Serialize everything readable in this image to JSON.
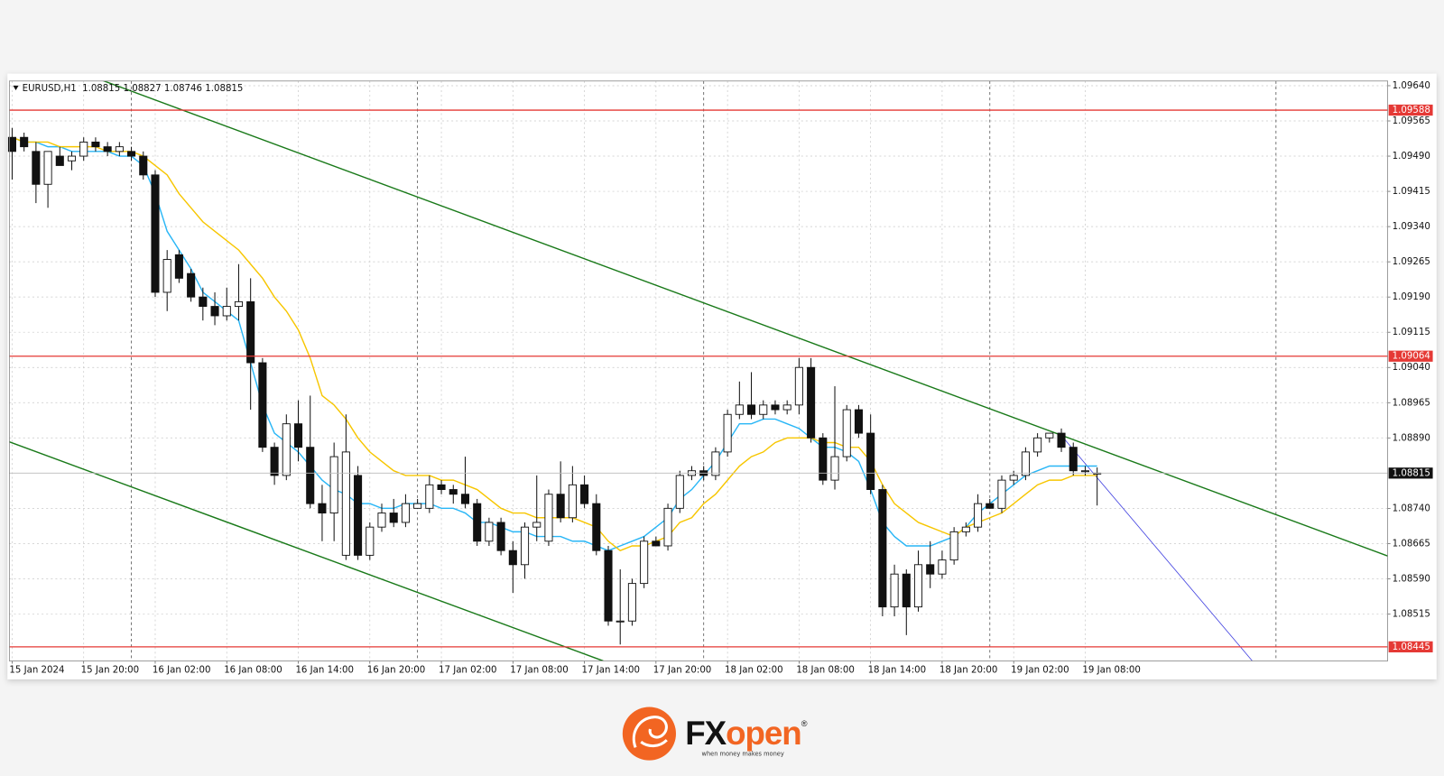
{
  "chart_data": {
    "type": "candlestick",
    "symbol": "EURUSD,H1",
    "categories": [
      "15 Jan 2024",
      null,
      null,
      null,
      null,
      null,
      "15 Jan 20:00",
      null,
      null,
      null,
      null,
      null,
      "16 Jan 02:00",
      null,
      null,
      null,
      null,
      null,
      "16 Jan 08:00",
      null,
      null,
      null,
      null,
      null,
      "16 Jan 14:00",
      null,
      null,
      null,
      null,
      null,
      "16 Jan 20:00",
      null,
      null,
      null,
      null,
      null,
      "17 Jan 02:00",
      null,
      null,
      null,
      null,
      null,
      "17 Jan 08:00",
      null,
      null,
      null,
      null,
      null,
      "17 Jan 14:00",
      null,
      null,
      null,
      null,
      null,
      "17 Jan 20:00",
      null,
      null,
      null,
      null,
      null,
      "18 Jan 02:00",
      null,
      null,
      null,
      null,
      null,
      "18 Jan 08:00",
      null,
      null,
      null,
      null,
      null,
      "18 Jan 14:00",
      null,
      null,
      null,
      null,
      null,
      "18 Jan 20:00",
      null,
      null,
      null,
      null,
      null,
      "19 Jan 02:00",
      null,
      null,
      null,
      null,
      null,
      "19 Jan 08:00",
      null
    ],
    "open": [
      1.0953,
      1.0953,
      1.095,
      1.0943,
      1.0949,
      1.0948,
      1.0949,
      1.0952,
      1.0951,
      1.095,
      1.095,
      1.0949,
      1.0945,
      1.092,
      1.0928,
      1.0924,
      1.0919,
      1.0917,
      1.0915,
      1.0917,
      1.0918,
      1.0905,
      1.0887,
      1.0881,
      1.0892,
      1.0887,
      1.0875,
      1.0873,
      1.0864,
      1.0881,
      1.0864,
      1.087,
      1.0873,
      1.0871,
      1.0874,
      1.0874,
      1.0879,
      1.0878,
      1.0877,
      1.0875,
      1.0867,
      1.0871,
      1.0865,
      1.0862,
      1.087,
      1.0867,
      1.0877,
      1.0872,
      1.0879,
      1.0875,
      1.0865,
      1.085,
      1.085,
      1.0858,
      1.0867,
      1.0866,
      1.0874,
      1.0881,
      1.0882,
      1.0881,
      1.0886,
      1.0894,
      1.0896,
      1.0894,
      1.0896,
      1.0895,
      1.0896,
      1.0904,
      1.0889,
      1.088,
      1.0885,
      1.0895,
      1.089,
      1.0878,
      1.0853,
      1.086,
      1.0853,
      1.0862,
      1.086,
      1.0863,
      1.0869,
      1.087,
      1.0875,
      1.0874,
      1.088,
      1.0881,
      1.0886,
      1.0889,
      1.089,
      1.0887,
      1.0882,
      1.08815
    ],
    "high": [
      1.0955,
      1.0954,
      1.0952,
      1.095,
      1.0951,
      1.095,
      1.0953,
      1.0953,
      1.0952,
      1.0952,
      1.0951,
      1.095,
      1.0946,
      1.0929,
      1.0929,
      1.0925,
      1.0921,
      1.092,
      1.0921,
      1.0926,
      1.0923,
      1.0906,
      1.0888,
      1.0894,
      1.0897,
      1.0898,
      1.0879,
      1.0888,
      1.0894,
      1.0883,
      1.0871,
      1.0875,
      1.0876,
      1.0877,
      1.0876,
      1.0881,
      1.088,
      1.0879,
      1.0885,
      1.0876,
      1.0872,
      1.0872,
      1.0867,
      1.0871,
      1.0881,
      1.0878,
      1.0884,
      1.0883,
      1.0881,
      1.0877,
      1.0866,
      1.0861,
      1.0859,
      1.0868,
      1.0868,
      1.0875,
      1.0882,
      1.0883,
      1.0883,
      1.0887,
      1.0895,
      1.0901,
      1.0903,
      1.0897,
      1.0897,
      1.0897,
      1.0906,
      1.0906,
      1.089,
      1.09,
      1.0896,
      1.0896,
      1.0894,
      1.0879,
      1.0862,
      1.0861,
      1.0865,
      1.0867,
      1.0865,
      1.087,
      1.0871,
      1.0877,
      1.0876,
      1.0881,
      1.0882,
      1.0887,
      1.089,
      1.089,
      1.0891,
      1.0888,
      1.0883,
      1.08827
    ],
    "low": [
      1.0944,
      1.095,
      1.0939,
      1.0938,
      1.0947,
      1.0946,
      1.0948,
      1.095,
      1.0949,
      1.0949,
      1.0948,
      1.0944,
      1.0919,
      1.0916,
      1.0922,
      1.0918,
      1.0914,
      1.0913,
      1.0914,
      1.0914,
      1.0895,
      1.0886,
      1.0879,
      1.088,
      1.0884,
      1.0874,
      1.0867,
      1.0867,
      1.0863,
      1.0863,
      1.0863,
      1.0869,
      1.087,
      1.087,
      1.0874,
      1.0873,
      1.0877,
      1.0875,
      1.0874,
      1.0866,
      1.0866,
      1.0864,
      1.0856,
      1.0859,
      1.0867,
      1.0866,
      1.0871,
      1.0871,
      1.0874,
      1.0864,
      1.0849,
      1.0845,
      1.0849,
      1.0857,
      1.0866,
      1.0865,
      1.0873,
      1.088,
      1.088,
      1.088,
      1.0885,
      1.0893,
      1.0893,
      1.0893,
      1.0894,
      1.0894,
      1.0894,
      1.0888,
      1.0879,
      1.0878,
      1.0884,
      1.0889,
      1.0877,
      1.0851,
      1.0851,
      1.0847,
      1.0852,
      1.0857,
      1.0859,
      1.0862,
      1.0868,
      1.0869,
      1.0874,
      1.0873,
      1.0879,
      1.088,
      1.0885,
      1.0888,
      1.0886,
      1.0881,
      1.0881,
      1.08746
    ],
    "close": [
      1.095,
      1.0951,
      1.0943,
      1.095,
      1.0947,
      1.0949,
      1.0952,
      1.0951,
      1.095,
      1.0951,
      1.0949,
      1.0945,
      1.092,
      1.0927,
      1.0923,
      1.0919,
      1.0917,
      1.0915,
      1.0917,
      1.0918,
      1.0905,
      1.0887,
      1.0881,
      1.0892,
      1.0887,
      1.0875,
      1.0873,
      1.0885,
      1.0886,
      1.0864,
      1.087,
      1.0873,
      1.0871,
      1.0875,
      1.0875,
      1.0879,
      1.0878,
      1.0877,
      1.0875,
      1.0867,
      1.0871,
      1.0865,
      1.0862,
      1.087,
      1.0871,
      1.0877,
      1.0872,
      1.0879,
      1.0875,
      1.0865,
      1.085,
      1.085,
      1.0858,
      1.0867,
      1.0866,
      1.0874,
      1.0881,
      1.0882,
      1.0881,
      1.0886,
      1.0894,
      1.0896,
      1.0894,
      1.0896,
      1.0895,
      1.0896,
      1.0904,
      1.0889,
      1.088,
      1.0885,
      1.0895,
      1.089,
      1.0878,
      1.0853,
      1.086,
      1.0853,
      1.0862,
      1.086,
      1.0863,
      1.0869,
      1.087,
      1.0875,
      1.0874,
      1.088,
      1.0881,
      1.0886,
      1.0889,
      1.089,
      1.0887,
      1.0882,
      1.0882,
      1.08815
    ],
    "lines": [
      {
        "color": "#29b6f6",
        "values": [
          1.0953,
          1.0952,
          1.0952,
          1.0951,
          1.0951,
          1.095,
          1.095,
          1.095,
          1.095,
          1.0949,
          1.0949,
          1.0947,
          1.0941,
          1.0933,
          1.0929,
          1.0925,
          1.092,
          1.0918,
          1.0916,
          1.0914,
          1.0905,
          1.0896,
          1.089,
          1.0888,
          1.0886,
          1.0883,
          1.088,
          1.0878,
          1.0877,
          1.0875,
          1.0875,
          1.0874,
          1.0874,
          1.0875,
          1.0875,
          1.0875,
          1.0874,
          1.0874,
          1.0873,
          1.0871,
          1.0871,
          1.087,
          1.0869,
          1.0869,
          1.0868,
          1.0868,
          1.0868,
          1.0867,
          1.0867,
          1.0866,
          1.0865,
          1.0866,
          1.0867,
          1.0868,
          1.087,
          1.0872,
          1.0876,
          1.0878,
          1.0881,
          1.0884,
          1.0888,
          1.0892,
          1.0892,
          1.0893,
          1.0893,
          1.0892,
          1.0891,
          1.0889,
          1.0887,
          1.0887,
          1.0886,
          1.0884,
          1.0878,
          1.0871,
          1.0868,
          1.0866,
          1.0866,
          1.0866,
          1.0867,
          1.0868,
          1.087,
          1.0873,
          1.0875,
          1.0877,
          1.0879,
          1.0881,
          1.0882,
          1.0883,
          1.0883,
          1.0883,
          1.0883,
          1.0883
        ]
      },
      {
        "color": "#f7c600",
        "values": [
          1.0953,
          1.0952,
          1.0952,
          1.0952,
          1.0951,
          1.0951,
          1.0951,
          1.0951,
          1.095,
          1.095,
          1.095,
          1.0949,
          1.0947,
          1.0945,
          1.0941,
          1.0938,
          1.0935,
          1.0933,
          1.0931,
          1.0929,
          1.0926,
          1.0923,
          1.0919,
          1.0916,
          1.0912,
          1.0906,
          1.0898,
          1.0896,
          1.0893,
          1.0889,
          1.0886,
          1.0884,
          1.0882,
          1.0881,
          1.0881,
          1.0881,
          1.088,
          1.088,
          1.0879,
          1.0878,
          1.0876,
          1.0874,
          1.0873,
          1.0873,
          1.0872,
          1.0872,
          1.0872,
          1.0872,
          1.0871,
          1.087,
          1.0867,
          1.0865,
          1.0866,
          1.0866,
          1.0867,
          1.0868,
          1.0871,
          1.0872,
          1.0875,
          1.0877,
          1.088,
          1.0883,
          1.0885,
          1.0886,
          1.0888,
          1.0889,
          1.0889,
          1.0889,
          1.0888,
          1.0888,
          1.0887,
          1.0887,
          1.0884,
          1.0879,
          1.0875,
          1.0873,
          1.0871,
          1.087,
          1.0869,
          1.0868,
          1.087,
          1.0871,
          1.0872,
          1.0873,
          1.0875,
          1.0877,
          1.0879,
          1.088,
          1.088,
          1.0881,
          1.0881,
          1.0881
        ]
      }
    ],
    "levels": {
      "color": "#e53935",
      "values": [
        1.09588,
        1.09064,
        1.08445
      ]
    },
    "ylim": [
      1.08415,
      1.0965
    ],
    "yticks": [
      {
        "value": 1.0964,
        "label": "1.09640"
      },
      1.09565,
      {
        "value": 1.0949,
        "label": "1.09490"
      },
      1.09415,
      {
        "value": 1.0934,
        "label": "1.09340"
      },
      1.09265,
      {
        "value": 1.0919,
        "label": "1.09190"
      },
      1.09115,
      {
        "value": 1.0904,
        "label": "1.09040"
      },
      1.08965,
      {
        "value": 1.0889,
        "label": "1.08890"
      },
      {
        "value": 1.0874,
        "label": "1.08740"
      },
      1.08665,
      {
        "value": 1.0859,
        "label": "1.08590"
      },
      1.08515
    ],
    "grid": true
  },
  "logo": {
    "brand_fx": "FX",
    "brand_open": "open",
    "mark": "®",
    "tagline": "when money makes money"
  }
}
